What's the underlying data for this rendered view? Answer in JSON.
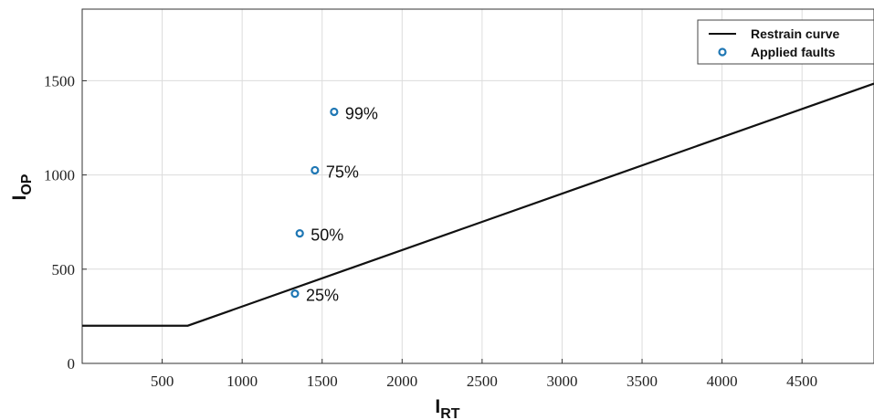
{
  "chart_data": {
    "type": "line",
    "title": "",
    "xlabel": {
      "main": "I",
      "sub": "RT"
    },
    "ylabel": {
      "main": "I",
      "sub": "OP"
    },
    "xlim": [
      0,
      4950
    ],
    "ylim": [
      0,
      1880
    ],
    "xticks": [
      500,
      1000,
      1500,
      2000,
      2500,
      3000,
      3500,
      4000,
      4500
    ],
    "yticks": [
      0,
      500,
      1000,
      1500
    ],
    "grid": true,
    "legend": {
      "placement": "top-right",
      "entries": [
        {
          "name": "Restrain curve",
          "marker": "line"
        },
        {
          "name": "Applied faults",
          "marker": "circle"
        }
      ]
    },
    "series": [
      {
        "name": "Restrain curve",
        "kind": "line",
        "color": "#111111",
        "x": [
          0,
          660,
          4950
        ],
        "y": [
          200,
          200,
          1485
        ]
      },
      {
        "name": "Applied faults",
        "kind": "scatter",
        "color": "#1f77b4",
        "x": [
          1330,
          1360,
          1455,
          1575
        ],
        "y": [
          370,
          690,
          1025,
          1335
        ],
        "labels": [
          "25%",
          "50%",
          "75%",
          "99%"
        ]
      }
    ]
  }
}
